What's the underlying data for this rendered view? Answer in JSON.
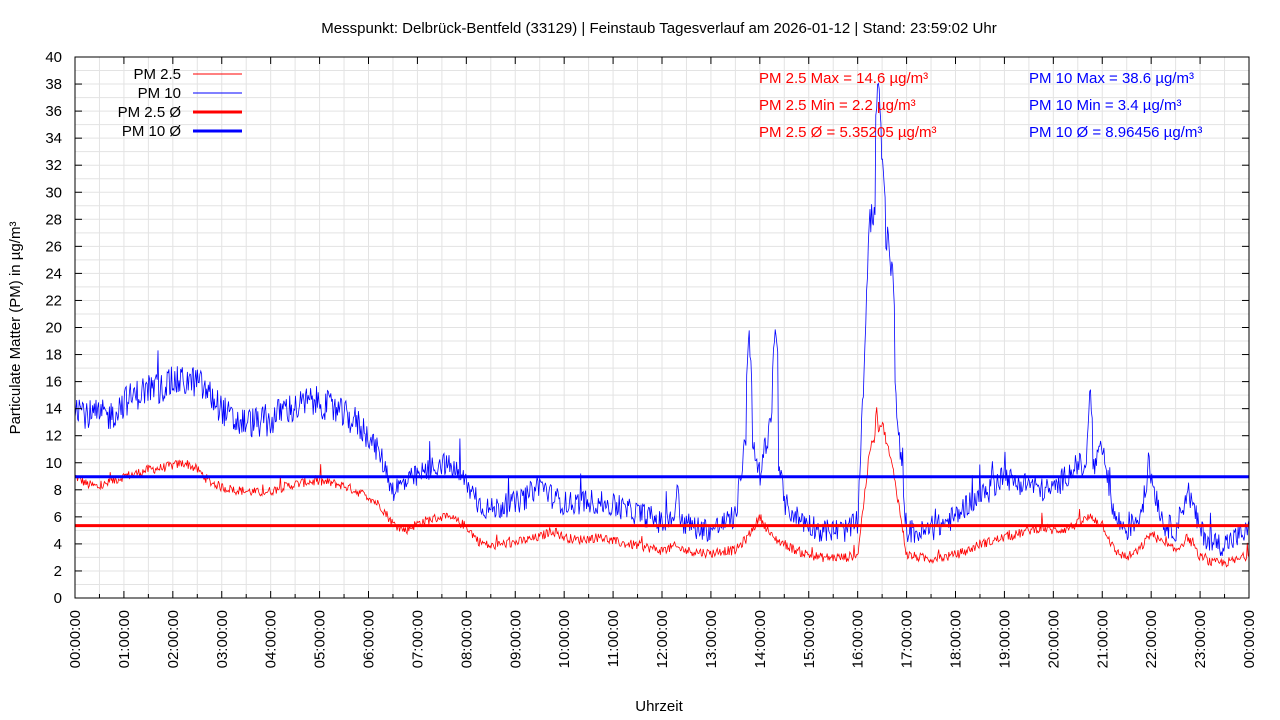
{
  "colors": {
    "pm25": "#ff0000",
    "pm10": "#0000ff",
    "grid": "#e3e3e3",
    "axis": "#000000",
    "text": "#000000"
  },
  "chart_data": {
    "type": "line",
    "title": "Messpunkt: Delbrück-Bentfeld (33129) | Feinstaub Tagesverlauf am 2026-01-12 | Stand: 23:59:02 Uhr",
    "xlabel": "Uhrzeit",
    "ylabel": "Particulate Matter (PM) in µg/m³",
    "ylim": [
      0,
      40
    ],
    "xlim": [
      "00:00:00",
      "24:00:00"
    ],
    "grid": true,
    "legend_placement": "top-left",
    "xticks": [
      "00:00:00",
      "01:00:00",
      "02:00:00",
      "03:00:00",
      "04:00:00",
      "05:00:00",
      "06:00:00",
      "07:00:00",
      "08:00:00",
      "09:00:00",
      "10:00:00",
      "11:00:00",
      "12:00:00",
      "13:00:00",
      "14:00:00",
      "15:00:00",
      "16:00:00",
      "17:00:00",
      "18:00:00",
      "19:00:00",
      "20:00:00",
      "21:00:00",
      "22:00:00",
      "23:00:00",
      "00:00:00"
    ],
    "yticks": [
      "0",
      "2",
      "4",
      "6",
      "8",
      "10",
      "12",
      "14",
      "16",
      "18",
      "20",
      "22",
      "24",
      "26",
      "28",
      "30",
      "32",
      "34",
      "36",
      "38",
      "40"
    ],
    "legend": [
      {
        "name": "PM 2.5",
        "series": "pm25",
        "style": "thin"
      },
      {
        "name": "PM 10",
        "series": "pm10",
        "style": "thin"
      },
      {
        "name": "PM 2.5 Ø",
        "series": "pm25",
        "style": "thick"
      },
      {
        "name": "PM 10 Ø",
        "series": "pm10",
        "style": "thick"
      }
    ],
    "stats": {
      "pm25": [
        "PM 2.5 Max = 14.6 µg/m³",
        "PM 2.5 Min = 2.2 µg/m³",
        "PM 2.5 Ø = 5.35205 µg/m³"
      ],
      "pm10": [
        "PM 10 Max = 38.6 µg/m³",
        "PM 10 Min = 3.4 µg/m³",
        "PM 10 Ø = 8.96456 µg/m³"
      ]
    },
    "averages": {
      "pm25": 5.35205,
      "pm10": 8.96456
    },
    "x_hours": [
      0,
      0.25,
      0.5,
      0.75,
      1,
      1.25,
      1.5,
      1.75,
      2,
      2.25,
      2.5,
      2.75,
      3,
      3.25,
      3.5,
      3.75,
      4,
      4.25,
      4.5,
      4.75,
      5,
      5.25,
      5.5,
      5.75,
      6,
      6.25,
      6.5,
      6.75,
      7,
      7.25,
      7.5,
      7.75,
      8,
      8.25,
      8.5,
      8.75,
      9,
      9.25,
      9.5,
      9.75,
      10,
      10.25,
      10.5,
      10.75,
      11,
      11.25,
      11.5,
      11.75,
      12,
      12.25,
      12.5,
      12.75,
      13,
      13.25,
      13.5,
      13.75,
      14,
      14.25,
      14.5,
      14.75,
      15,
      15.25,
      15.5,
      15.75,
      16,
      16.25,
      16.5,
      16.75,
      17,
      17.25,
      17.5,
      17.75,
      18,
      18.25,
      18.5,
      18.75,
      19,
      19.25,
      19.5,
      19.75,
      20,
      20.25,
      20.5,
      20.75,
      21,
      21.25,
      21.5,
      21.75,
      22,
      22.25,
      22.5,
      22.75,
      23,
      23.25,
      23.5,
      23.75,
      24
    ],
    "series": [
      {
        "name": "PM 2.5",
        "key": "pm25",
        "values": [
          9.0,
          8.4,
          8.2,
          8.6,
          9.0,
          9.2,
          9.5,
          9.6,
          9.8,
          10.0,
          9.5,
          8.6,
          8.2,
          8.0,
          7.9,
          7.8,
          7.9,
          8.2,
          8.4,
          8.6,
          8.6,
          8.5,
          8.3,
          7.9,
          7.5,
          6.8,
          5.5,
          5.0,
          5.5,
          5.8,
          6.0,
          5.8,
          5.3,
          4.2,
          3.8,
          4.0,
          4.1,
          4.3,
          4.5,
          5.0,
          4.5,
          4.3,
          4.4,
          4.5,
          4.2,
          4.0,
          3.9,
          3.7,
          3.5,
          3.8,
          3.5,
          3.4,
          3.3,
          3.5,
          3.5,
          4.5,
          6.0,
          4.5,
          4.0,
          3.5,
          3.2,
          3.0,
          3.0,
          3.0,
          3.2,
          11.0,
          13.0,
          9.0,
          3.2,
          3.0,
          2.9,
          3.0,
          3.2,
          3.5,
          4.0,
          4.2,
          4.5,
          4.7,
          5.0,
          5.2,
          5.0,
          5.1,
          5.5,
          6.0,
          5.5,
          3.5,
          3.0,
          3.5,
          4.8,
          4.0,
          3.5,
          4.5,
          3.0,
          2.6,
          2.6,
          2.8,
          3.2
        ],
        "raw": [
          {
            "x": 16.39,
            "y": 14.6
          }
        ]
      },
      {
        "name": "PM 10",
        "key": "pm10",
        "values": [
          14.5,
          13.5,
          13.5,
          13.5,
          14.5,
          15.0,
          15.5,
          15.5,
          16.0,
          16.0,
          16.0,
          15.0,
          14.0,
          13.0,
          13.0,
          13.0,
          13.0,
          14.0,
          14.0,
          14.5,
          14.5,
          14.0,
          13.5,
          13.0,
          12.0,
          10.5,
          8.0,
          8.5,
          9.0,
          9.5,
          10.0,
          9.5,
          8.5,
          7.0,
          6.5,
          6.8,
          7.0,
          7.5,
          8.5,
          7.5,
          7.0,
          7.0,
          7.2,
          7.0,
          6.8,
          6.5,
          6.3,
          6.0,
          5.5,
          6.0,
          5.5,
          5.2,
          5.0,
          5.5,
          6.0,
          13.0,
          9.0,
          14.0,
          7.0,
          6.0,
          5.5,
          5.0,
          5.0,
          5.0,
          5.5,
          28.0,
          30.0,
          16.0,
          5.0,
          4.8,
          5.0,
          5.5,
          6.0,
          7.0,
          7.5,
          8.0,
          9.0,
          8.5,
          8.5,
          8.0,
          8.0,
          9.0,
          10.0,
          9.0,
          11.0,
          6.0,
          5.0,
          6.0,
          9.0,
          5.5,
          5.0,
          8.0,
          5.0,
          4.0,
          4.0,
          4.5,
          5.0
        ],
        "raw": [
          {
            "x": 16.42,
            "y": 38.6
          },
          {
            "x": 16.5,
            "y": 33.0
          },
          {
            "x": 16.62,
            "y": 27.5
          },
          {
            "x": 16.7,
            "y": 25.0
          },
          {
            "x": 13.78,
            "y": 19.5
          },
          {
            "x": 14.32,
            "y": 20.5
          },
          {
            "x": 20.75,
            "y": 15.5
          },
          {
            "x": 12.32,
            "y": 9.0
          },
          {
            "x": 21.95,
            "y": 10.7
          },
          {
            "x": 18.75,
            "y": 10.3
          }
        ]
      }
    ]
  }
}
